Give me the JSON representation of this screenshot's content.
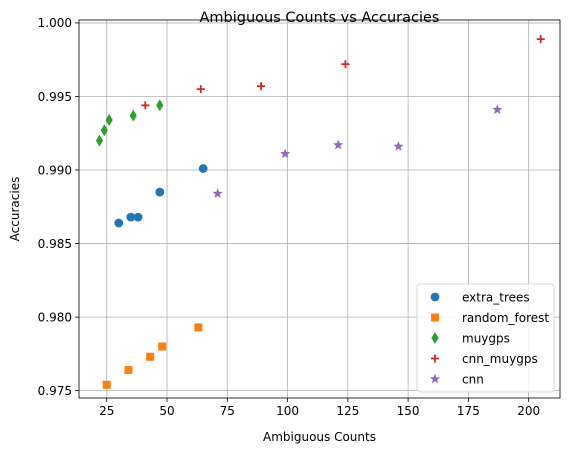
{
  "chart_data": {
    "type": "scatter",
    "title": "Ambiguous Counts vs Accuracies",
    "xlabel": "Ambiguous Counts",
    "ylabel": "Accuracies",
    "xlim": [
      13.5,
      213
    ],
    "ylim": [
      0.9745,
      1.0002
    ],
    "x_ticks": [
      25,
      50,
      75,
      100,
      125,
      150,
      175,
      200
    ],
    "x_tick_labels": [
      "25",
      "50",
      "75",
      "100",
      "125",
      "150",
      "175",
      "200"
    ],
    "y_ticks": [
      0.975,
      0.98,
      0.985,
      0.99,
      0.995,
      1.0
    ],
    "y_tick_labels": [
      "0.975",
      "0.980",
      "0.985",
      "0.990",
      "0.995",
      "1.000"
    ],
    "grid": true,
    "legend_position": "lower-right",
    "series": [
      {
        "name": "extra_trees",
        "marker": "circle",
        "color": "#1f77b4",
        "x": [
          30,
          35,
          38,
          47,
          65
        ],
        "y": [
          0.9864,
          0.9868,
          0.9868,
          0.9885,
          0.9901
        ]
      },
      {
        "name": "random_forest",
        "marker": "square",
        "color": "#ff7f0e",
        "x": [
          25,
          34,
          43,
          48,
          63
        ],
        "y": [
          0.9754,
          0.9764,
          0.9773,
          0.978,
          0.9793
        ]
      },
      {
        "name": "muygps",
        "marker": "diamond",
        "color": "#2ca02c",
        "x": [
          22,
          24,
          26,
          36,
          47
        ],
        "y": [
          0.992,
          0.9927,
          0.9934,
          0.9937,
          0.9944
        ]
      },
      {
        "name": "cnn_muygps",
        "marker": "plus",
        "color": "#d62728",
        "x": [
          41,
          64,
          89,
          124,
          205
        ],
        "y": [
          0.9944,
          0.9955,
          0.9957,
          0.9972,
          0.9989
        ]
      },
      {
        "name": "cnn",
        "marker": "star",
        "color": "#9467bd",
        "x": [
          71,
          99,
          121,
          146,
          187
        ],
        "y": [
          0.9884,
          0.9911,
          0.9917,
          0.9916,
          0.9941
        ]
      }
    ]
  }
}
